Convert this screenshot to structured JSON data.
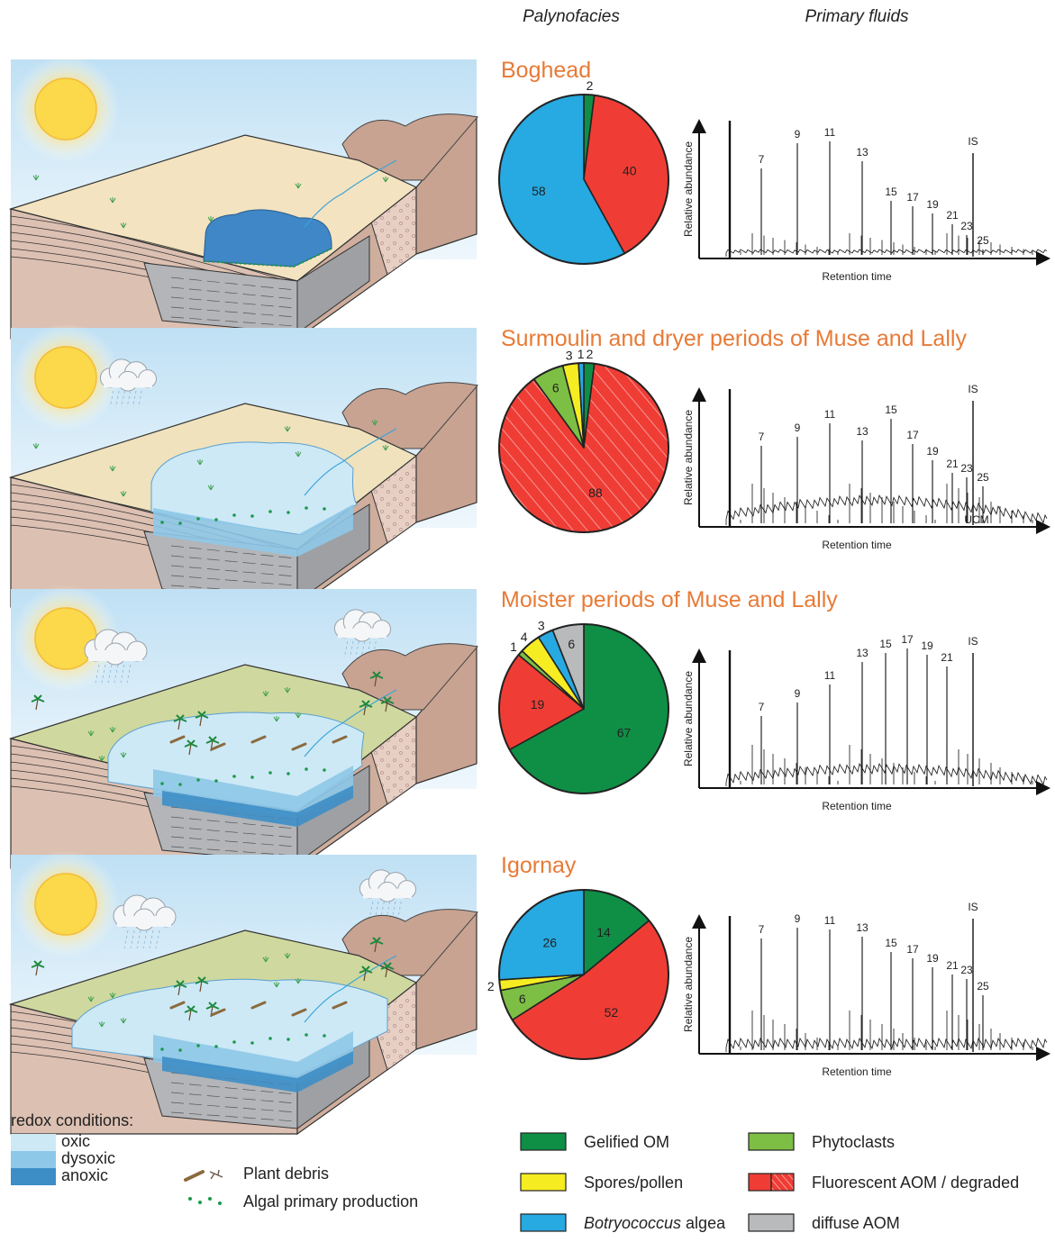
{
  "column_headers": {
    "palynofacies": "Palynofacies",
    "fluids": "Primary fluids"
  },
  "colors": {
    "gelified": "#0f8f45",
    "spores": "#f6ec22",
    "botryococcus": "#27a9e1",
    "phytoclasts": "#7dbf45",
    "fluorescent": "#ef3d35",
    "diffuse": "#b9babc",
    "title": "#e87a36",
    "oxic": "#cde9f6",
    "dysoxic": "#8ec8e8",
    "anoxic": "#3d8ec6"
  },
  "sections": [
    {
      "title": "Boghead",
      "pie": {
        "slices": [
          {
            "category": "gelified",
            "value": 2
          },
          {
            "category": "fluorescent",
            "value": 40
          },
          {
            "category": "botryococcus",
            "value": 58
          }
        ],
        "labels": [
          "2",
          "40",
          "58"
        ]
      },
      "chromatogram": {
        "y_label": "Relative abundance",
        "x_label": "Retention time",
        "peaks": [
          "7",
          "9",
          "11",
          "13",
          "15",
          "17",
          "19",
          "21",
          "23",
          "25"
        ],
        "standard": "IS",
        "extra": ""
      }
    },
    {
      "title": "Surmoulin and dryer periods of Muse and Lally",
      "pie": {
        "slices": [
          {
            "category": "gelified",
            "value": 2
          },
          {
            "category": "fluorescent",
            "value": 88,
            "hatched": true
          },
          {
            "category": "phytoclasts",
            "value": 6
          },
          {
            "category": "spores",
            "value": 3
          },
          {
            "category": "botryococcus",
            "value": 1
          }
        ],
        "labels": [
          "2",
          "88",
          "6",
          "3",
          "1"
        ]
      },
      "chromatogram": {
        "y_label": "Relative abundance",
        "x_label": "Retention time",
        "peaks": [
          "7",
          "9",
          "11",
          "13",
          "15",
          "17",
          "19",
          "21",
          "23",
          "25"
        ],
        "standard": "IS",
        "extra": "UCM"
      }
    },
    {
      "title": "Moister periods of Muse and Lally",
      "pie": {
        "slices": [
          {
            "category": "gelified",
            "value": 67
          },
          {
            "category": "fluorescent",
            "value": 19
          },
          {
            "category": "phytoclasts",
            "value": 1
          },
          {
            "category": "spores",
            "value": 4
          },
          {
            "category": "botryococcus",
            "value": 3
          },
          {
            "category": "diffuse",
            "value": 6
          }
        ],
        "labels": [
          "67",
          "19",
          "1",
          "4",
          "3",
          "6"
        ]
      },
      "chromatogram": {
        "y_label": "Relative abundance",
        "x_label": "Retention time",
        "peaks": [
          "7",
          "9",
          "11",
          "13",
          "15",
          "17",
          "19",
          "21"
        ],
        "standard": "IS",
        "extra": ""
      }
    },
    {
      "title": "Igornay",
      "pie": {
        "slices": [
          {
            "category": "gelified",
            "value": 14
          },
          {
            "category": "fluorescent",
            "value": 52
          },
          {
            "category": "phytoclasts",
            "value": 6
          },
          {
            "category": "spores",
            "value": 2
          },
          {
            "category": "botryococcus",
            "value": 26
          }
        ],
        "labels": [
          "14",
          "52",
          "6",
          "2",
          "26"
        ]
      },
      "chromatogram": {
        "y_label": "Relative abundance",
        "x_label": "Retention time",
        "peaks": [
          "7",
          "9",
          "11",
          "13",
          "15",
          "17",
          "19",
          "21",
          "23",
          "25"
        ],
        "standard": "IS",
        "extra": ""
      }
    }
  ],
  "legend": {
    "redox_title": "redox conditions:",
    "redox": [
      "oxic",
      "dysoxic",
      "anoxic"
    ],
    "plant_debris": "Plant debris",
    "algal": "Algal primary production",
    "categories": [
      {
        "key": "gelified",
        "label": "Gelified OM"
      },
      {
        "key": "phytoclasts",
        "label": "Phytoclasts"
      },
      {
        "key": "spores",
        "label": "Spores/pollen"
      },
      {
        "key": "fluorescent",
        "label": "Fluorescent AOM / degraded"
      },
      {
        "key": "botryococcus",
        "label_italic": "Botryococcus",
        "label_rest": " algea"
      },
      {
        "key": "diffuse",
        "label": "diffuse AOM"
      }
    ]
  }
}
